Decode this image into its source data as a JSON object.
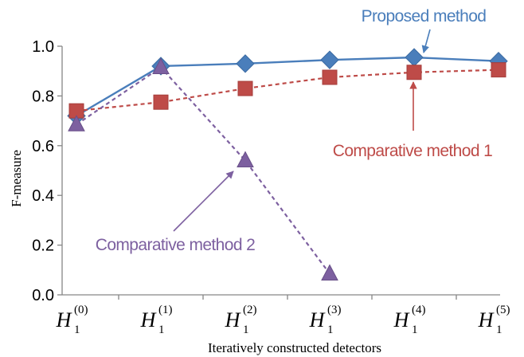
{
  "chart_data": {
    "type": "line",
    "title": "",
    "xlabel": "Iteratively constructed detectors",
    "ylabel": "F-measure",
    "ylim": [
      0,
      1.0
    ],
    "yticks": [
      0.0,
      0.2,
      0.4,
      0.6,
      0.8,
      1.0
    ],
    "ytick_labels": [
      "0.0",
      "0.2",
      "0.4",
      "0.6",
      "0.8",
      "1.0"
    ],
    "categories": [
      {
        "main": "H",
        "sub": "1",
        "sup": "(0)"
      },
      {
        "main": "H",
        "sub": "1",
        "sup": "(1)"
      },
      {
        "main": "H",
        "sub": "1",
        "sup": "(2)"
      },
      {
        "main": "H",
        "sub": "1",
        "sup": "(3)"
      },
      {
        "main": "H",
        "sub": "1",
        "sup": "(4)"
      },
      {
        "main": "H",
        "sub": "1",
        "sup": "(5)"
      }
    ],
    "grid": false,
    "series": [
      {
        "name": "Proposed method",
        "marker": "diamond",
        "line": "solid",
        "color": "#4a7ebb",
        "values": [
          0.72,
          0.92,
          0.93,
          0.945,
          0.955,
          0.94
        ]
      },
      {
        "name": "Comparative method 1",
        "marker": "square",
        "line": "dashed",
        "color": "#be4b48",
        "values": [
          0.74,
          0.775,
          0.83,
          0.875,
          0.895,
          0.905
        ]
      },
      {
        "name": "Comparative method 2",
        "marker": "triangle",
        "line": "dashed",
        "color": "#7d60a0",
        "values": [
          0.685,
          0.915,
          0.54,
          0.085,
          null,
          null
        ]
      }
    ],
    "annotations": [
      {
        "text": "Proposed method",
        "series": 0,
        "color": "#4a7ebb"
      },
      {
        "text": "Comparative method 1",
        "series": 1,
        "color": "#be4b48"
      },
      {
        "text": "Comparative method 2",
        "series": 2,
        "color": "#7d60a0"
      }
    ]
  }
}
